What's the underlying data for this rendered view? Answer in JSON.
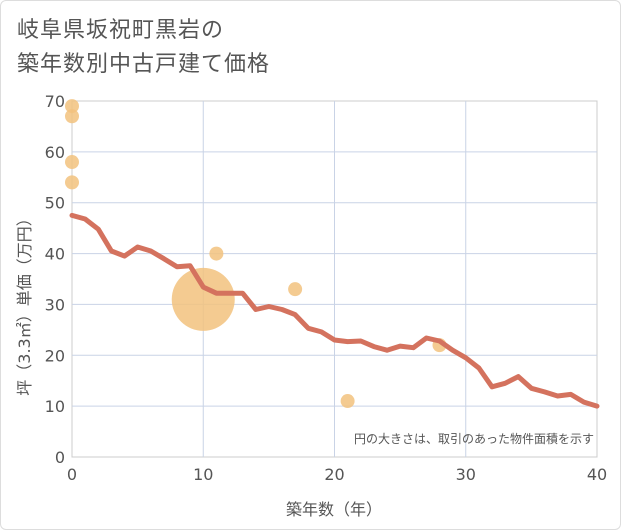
{
  "title": {
    "line1": "岐阜県坂祝町黒岩の",
    "line2": "築年数別中古戸建て価格"
  },
  "chart_data": {
    "type": "scatter",
    "title": "岐阜県坂祝町黒岩の築年数別中古戸建て価格",
    "xlabel": "築年数（年）",
    "ylabel": "坪（3.3㎡）単価（万円）",
    "xlim": [
      0,
      40
    ],
    "ylim": [
      0,
      70
    ],
    "xticks": [
      0,
      10,
      20,
      30,
      40
    ],
    "yticks": [
      0,
      10,
      20,
      30,
      40,
      50,
      60,
      70
    ],
    "grid": true,
    "note": "円の大きさは、取引のあった物件面積を示す",
    "colors": {
      "bubble": "#f2c27e",
      "line": "#d4725e",
      "grid": "#c9d3e6"
    },
    "scatter": [
      {
        "x": 0,
        "y": 69,
        "size": 1
      },
      {
        "x": 0,
        "y": 67,
        "size": 1
      },
      {
        "x": 0,
        "y": 58,
        "size": 1
      },
      {
        "x": 0,
        "y": 54,
        "size": 1
      },
      {
        "x": 10,
        "y": 31,
        "size": 4.5
      },
      {
        "x": 11,
        "y": 40,
        "size": 1
      },
      {
        "x": 17,
        "y": 33,
        "size": 1
      },
      {
        "x": 21,
        "y": 11,
        "size": 1
      },
      {
        "x": 28,
        "y": 22,
        "size": 1
      }
    ],
    "line": {
      "x": [
        0,
        1,
        2,
        3,
        4,
        5,
        6,
        7,
        8,
        9,
        10,
        11,
        12,
        13,
        14,
        15,
        16,
        17,
        18,
        19,
        20,
        21,
        22,
        23,
        24,
        25,
        26,
        27,
        28,
        29,
        30,
        31,
        32,
        33,
        34,
        35,
        36,
        37,
        38,
        39,
        40
      ],
      "y": [
        47.5,
        46.8,
        44.8,
        40.5,
        39.5,
        41.3,
        40.5,
        39,
        37.4,
        37.6,
        33.4,
        32.2,
        32.2,
        32.2,
        29,
        29.6,
        29,
        28,
        25.3,
        24.6,
        23,
        22.7,
        22.8,
        21.7,
        21,
        21.8,
        21.5,
        23.4,
        22.8,
        21,
        19.5,
        17.5,
        13.8,
        14.5,
        15.8,
        13.5,
        12.8,
        12,
        12.3,
        10.8,
        10
      ]
    }
  }
}
